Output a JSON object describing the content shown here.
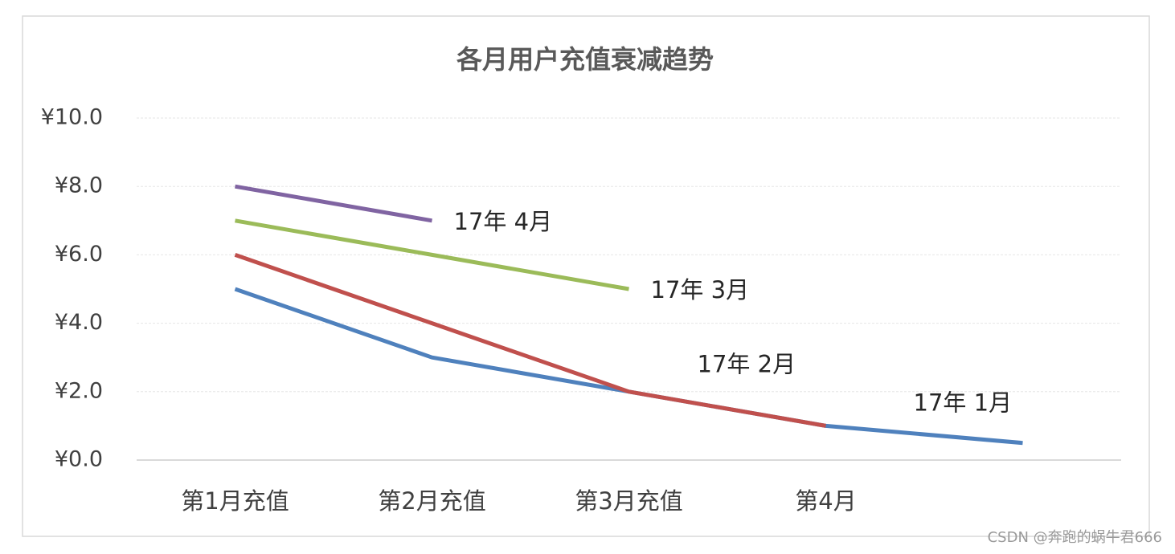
{
  "chart_data": {
    "type": "line",
    "title": "各月用户充值衰减趋势",
    "categories": [
      "第1月充值",
      "第2月充值",
      "第3月充值",
      "第4月",
      null
    ],
    "series": [
      {
        "name": "17年 1月",
        "color": "#4f81bd",
        "values": [
          5,
          3,
          2,
          1,
          0.5
        ]
      },
      {
        "name": "17年 2月",
        "color": "#c0504d",
        "values": [
          6,
          4,
          2,
          1,
          null
        ]
      },
      {
        "name": "17年 3月",
        "color": "#9bbb59",
        "values": [
          7,
          6,
          5,
          null,
          null
        ]
      },
      {
        "name": "17年 4月",
        "color": "#8064a2",
        "values": [
          8,
          7,
          null,
          null,
          null
        ]
      }
    ],
    "ylim": [
      0,
      10
    ],
    "yticks": [
      {
        "value": 0,
        "label": "¥0.0"
      },
      {
        "value": 2,
        "label": "¥2.0"
      },
      {
        "value": 4,
        "label": "¥4.0"
      },
      {
        "value": 6,
        "label": "¥6.0"
      },
      {
        "value": 8,
        "label": "¥8.0"
      },
      {
        "value": 10,
        "label": "¥10.0"
      }
    ],
    "grid": true,
    "watermark": "CSDN @奔跑的蜗牛君666"
  }
}
